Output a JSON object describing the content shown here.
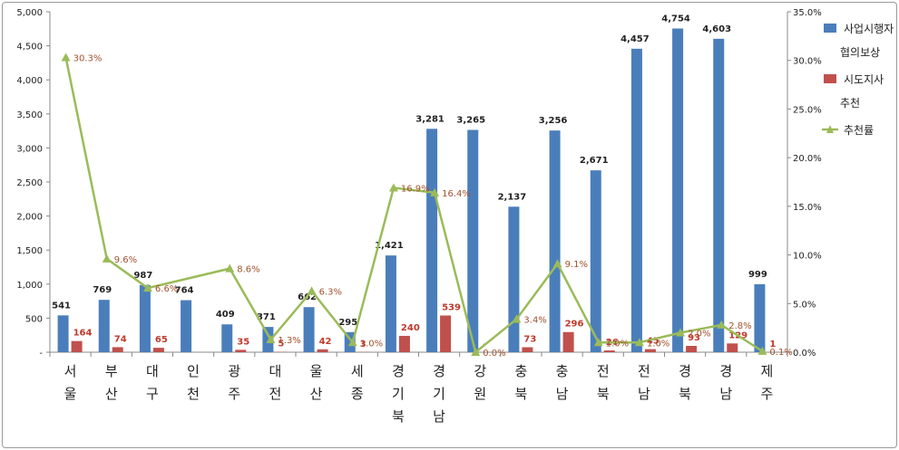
{
  "chart_data": {
    "type": "bar",
    "categories": [
      [
        "서",
        "울"
      ],
      [
        "부",
        "산"
      ],
      [
        "대",
        "구"
      ],
      [
        "인",
        "천"
      ],
      [
        "광",
        "주"
      ],
      [
        "대",
        "전"
      ],
      [
        "울",
        "산"
      ],
      [
        "세",
        "종"
      ],
      [
        "경",
        "기",
        "북"
      ],
      [
        "경",
        "기",
        "남"
      ],
      [
        "강",
        "원"
      ],
      [
        "충",
        "북"
      ],
      [
        "충",
        "남"
      ],
      [
        "전",
        "북"
      ],
      [
        "전",
        "남"
      ],
      [
        "경",
        "북"
      ],
      [
        "경",
        "남"
      ],
      [
        "제",
        "주"
      ]
    ],
    "series": [
      {
        "name": "사업시행자 협의보상",
        "type": "bar",
        "axis": "left",
        "color": "#4a7ebb",
        "values": [
          541,
          769,
          987,
          764,
          409,
          371,
          662,
          295,
          1421,
          3281,
          3265,
          2137,
          3256,
          2671,
          4457,
          4754,
          4603,
          999
        ],
        "labels": [
          "541",
          "769",
          "987",
          "764",
          "409",
          "371",
          "662",
          "295",
          "1,421",
          "3,281",
          "3,265",
          "2,137",
          "3,256",
          "2,671",
          "4,457",
          "4,754",
          "4,603",
          "999"
        ]
      },
      {
        "name": "시도지사 추천",
        "type": "bar",
        "axis": "left",
        "color": "#c0504d",
        "values": [
          164,
          74,
          65,
          0,
          35,
          5,
          42,
          3,
          240,
          539,
          0,
          73,
          296,
          26,
          45,
          93,
          129,
          1
        ],
        "labels": [
          "164",
          "74",
          "65",
          "",
          "35",
          "5",
          "42",
          "3",
          "240",
          "539",
          "-",
          "73",
          "296",
          "26",
          "45",
          "93",
          "129",
          "1"
        ]
      },
      {
        "name": "추천률",
        "type": "line",
        "axis": "right",
        "color": "#9bbb59",
        "values": [
          30.3,
          9.6,
          6.6,
          null,
          8.6,
          1.3,
          6.3,
          1.0,
          16.9,
          16.4,
          0.0,
          3.4,
          9.1,
          1.0,
          1.0,
          2.0,
          2.8,
          0.1
        ],
        "labels": [
          "30.3%",
          "9.6%",
          "6.6%",
          "",
          "8.6%",
          "1.3%",
          "6.3%",
          "1.0%",
          "16.9%",
          "16.4%",
          "0.0%",
          "3.4%",
          "9.1%",
          "1.0%",
          "1.0%",
          "2.0%",
          "2.8%",
          "0.1%"
        ]
      }
    ],
    "y_left": {
      "min": 0,
      "max": 5000,
      "ticks": [
        0,
        500,
        1000,
        1500,
        2000,
        2500,
        3000,
        3500,
        4000,
        4500,
        5000
      ],
      "tick_labels": [
        "-",
        "500",
        "1,000",
        "1,500",
        "2,000",
        "2,500",
        "3,000",
        "3,500",
        "4,000",
        "4,500",
        "5,000"
      ]
    },
    "y_right": {
      "min": 0,
      "max": 35,
      "ticks": [
        0,
        5,
        10,
        15,
        20,
        25,
        30,
        35
      ],
      "tick_labels": [
        "0.0%",
        "5.0%",
        "10.0%",
        "15.0%",
        "20.0%",
        "25.0%",
        "30.0%",
        "35.0%"
      ]
    },
    "legend": {
      "position": "right",
      "entries": [
        {
          "lines": [
            "사업시행자",
            "협의보상"
          ],
          "color": "#4a7ebb",
          "kind": "bar"
        },
        {
          "lines": [
            "시도지사",
            "추천"
          ],
          "color": "#c0504d",
          "kind": "bar"
        },
        {
          "lines": [
            "추천률"
          ],
          "color": "#9bbb59",
          "kind": "line"
        }
      ]
    },
    "grid": false
  }
}
